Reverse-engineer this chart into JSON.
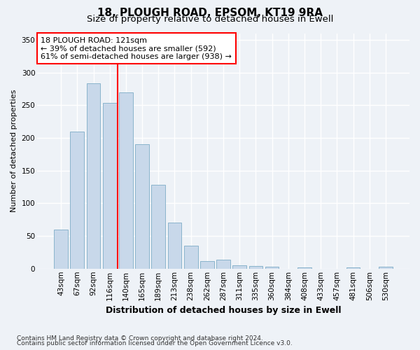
{
  "title1": "18, PLOUGH ROAD, EPSOM, KT19 9RA",
  "title2": "Size of property relative to detached houses in Ewell",
  "xlabel": "Distribution of detached houses by size in Ewell",
  "ylabel": "Number of detached properties",
  "categories": [
    "43sqm",
    "67sqm",
    "92sqm",
    "116sqm",
    "140sqm",
    "165sqm",
    "189sqm",
    "213sqm",
    "238sqm",
    "262sqm",
    "287sqm",
    "311sqm",
    "335sqm",
    "360sqm",
    "384sqm",
    "408sqm",
    "433sqm",
    "457sqm",
    "481sqm",
    "506sqm",
    "530sqm"
  ],
  "values": [
    60,
    210,
    283,
    253,
    270,
    190,
    128,
    70,
    35,
    11,
    14,
    5,
    4,
    3,
    0,
    2,
    0,
    0,
    2,
    0,
    3
  ],
  "bar_color": "#c8d8ea",
  "bar_edge_color": "#8ab4cc",
  "highlight_x": "116sqm",
  "annotation_line1": "18 PLOUGH ROAD: 121sqm",
  "annotation_line2": "← 39% of detached houses are smaller (592)",
  "annotation_line3": "61% of semi-detached houses are larger (938) →",
  "annotation_box_color": "white",
  "annotation_box_edge_color": "red",
  "vline_color": "red",
  "background_color": "#eef2f7",
  "grid_color": "white",
  "footer1": "Contains HM Land Registry data © Crown copyright and database right 2024.",
  "footer2": "Contains public sector information licensed under the Open Government Licence v3.0.",
  "ylim": [
    0,
    360
  ],
  "yticks": [
    0,
    50,
    100,
    150,
    200,
    250,
    300,
    350
  ],
  "title1_fontsize": 11,
  "title2_fontsize": 9.5,
  "xlabel_fontsize": 9,
  "ylabel_fontsize": 8,
  "tick_fontsize": 7.5,
  "annotation_fontsize": 8,
  "footer_fontsize": 6.5
}
